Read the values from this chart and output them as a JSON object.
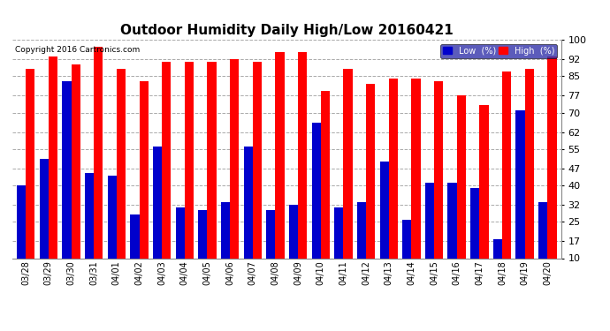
{
  "title": "Outdoor Humidity Daily High/Low 20160421",
  "copyright": "Copyright 2016 Cartronics.com",
  "categories": [
    "03/28",
    "03/29",
    "03/30",
    "03/31",
    "04/01",
    "04/02",
    "04/03",
    "04/04",
    "04/05",
    "04/06",
    "04/07",
    "04/08",
    "04/09",
    "04/10",
    "04/11",
    "04/12",
    "04/13",
    "04/14",
    "04/15",
    "04/16",
    "04/17",
    "04/18",
    "04/19",
    "04/20"
  ],
  "high": [
    88,
    93,
    90,
    97,
    88,
    83,
    91,
    91,
    91,
    92,
    91,
    95,
    95,
    79,
    88,
    82,
    84,
    84,
    83,
    77,
    73,
    87,
    88,
    93
  ],
  "low": [
    40,
    51,
    83,
    45,
    44,
    28,
    56,
    31,
    30,
    33,
    56,
    30,
    32,
    66,
    31,
    33,
    50,
    26,
    41,
    41,
    39,
    18,
    71,
    33
  ],
  "high_color": "#ff0000",
  "low_color": "#0000cc",
  "bg_color": "#ffffff",
  "grid_color": "#aaaaaa",
  "ylim": [
    10,
    100
  ],
  "yticks": [
    10,
    17,
    25,
    32,
    40,
    47,
    55,
    62,
    70,
    77,
    85,
    92,
    100
  ],
  "bar_width": 0.4,
  "legend_low_label": "Low  (%)",
  "legend_high_label": "High  (%)"
}
